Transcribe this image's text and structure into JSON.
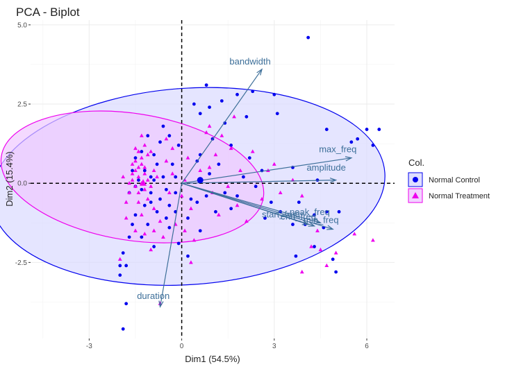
{
  "chart_data": {
    "type": "scatter",
    "title": "PCA - Biplot",
    "xlabel": "Dim1 (54.5%)",
    "ylabel": "Dim2 (15.4%)",
    "xlim": [
      -4.9,
      6.9
    ],
    "ylim": [
      -4.9,
      5.15
    ],
    "xticks": [
      -3,
      0,
      3,
      6
    ],
    "xtick_labels": [
      "-3",
      "0",
      "3",
      "6"
    ],
    "yticks": [
      -2.5,
      0,
      2.5,
      5
    ],
    "ytick_labels": [
      "-2.5",
      "0.0",
      "2.5",
      "5.0"
    ],
    "grid": true,
    "legend_position": "right",
    "legend_title": "Col.",
    "colors": {
      "control": "#0000ee",
      "treatment": "#ee00ee",
      "arrow": "#3d6f99",
      "grid": "#ebebeb"
    },
    "series": [
      {
        "name": "Normal Control",
        "marker": "circle",
        "centroid": [
          0.6,
          0.1
        ],
        "ellipse": {
          "cx": 0.2,
          "cy": -0.1,
          "rx": 6.4,
          "ry": 3.1,
          "angle_deg": 4
        },
        "points": [
          [
            4.1,
            4.6
          ],
          [
            3.0,
            2.8
          ],
          [
            0.8,
            3.1
          ],
          [
            0.9,
            2.4
          ],
          [
            1.3,
            2.6
          ],
          [
            1.8,
            2.8
          ],
          [
            0.4,
            2.5
          ],
          [
            6.0,
            1.7
          ],
          [
            6.4,
            1.7
          ],
          [
            5.7,
            1.4
          ],
          [
            4.7,
            1.7
          ],
          [
            6.2,
            1.2
          ],
          [
            5.5,
            1.3
          ],
          [
            1.4,
            1.9
          ],
          [
            2.1,
            2.1
          ],
          [
            3.1,
            2.2
          ],
          [
            2.3,
            2.9
          ],
          [
            0.6,
            2.2
          ],
          [
            1.0,
            1.4
          ],
          [
            1.6,
            1.2
          ],
          [
            2.2,
            0.8
          ],
          [
            3.6,
            0.5
          ],
          [
            4.4,
            0.1
          ],
          [
            3.8,
            -0.6
          ],
          [
            2.9,
            -0.6
          ],
          [
            4.7,
            -0.9
          ],
          [
            5.1,
            -0.9
          ],
          [
            4.3,
            -1.0
          ],
          [
            4.6,
            -1.4
          ],
          [
            2.7,
            -1.1
          ],
          [
            1.6,
            -0.8
          ],
          [
            0.8,
            -0.4
          ],
          [
            1.4,
            -0.3
          ],
          [
            0.3,
            -0.5
          ],
          [
            0.9,
            0.3
          ],
          [
            0.5,
            0.7
          ],
          [
            0.6,
            0.9
          ],
          [
            1.2,
            0.6
          ],
          [
            -0.1,
            1.2
          ],
          [
            -0.4,
            1.5
          ],
          [
            -0.7,
            1.3
          ],
          [
            -1.1,
            1.5
          ],
          [
            -0.6,
            1.8
          ],
          [
            -1.3,
            1.0
          ],
          [
            -0.9,
            0.9
          ],
          [
            -0.3,
            0.6
          ],
          [
            -0.2,
            0.2
          ],
          [
            -0.6,
            0.2
          ],
          [
            -0.9,
            0.1
          ],
          [
            -1.2,
            0.4
          ],
          [
            -1.4,
            0.1
          ],
          [
            -1.5,
            -0.1
          ],
          [
            -1.7,
            -0.3
          ],
          [
            -1.0,
            -0.3
          ],
          [
            -0.7,
            -0.5
          ],
          [
            -0.4,
            -0.7
          ],
          [
            -0.8,
            -0.9
          ],
          [
            -1.2,
            -0.7
          ],
          [
            -1.5,
            -1.0
          ],
          [
            -1.6,
            -1.3
          ],
          [
            -1.1,
            -1.3
          ],
          [
            -0.5,
            -1.1
          ],
          [
            -0.2,
            -0.9
          ],
          [
            -1.3,
            -1.7
          ],
          [
            -1.7,
            -1.7
          ],
          [
            -1.9,
            -2.2
          ],
          [
            -1.8,
            -2.6
          ],
          [
            -2.0,
            -2.6
          ],
          [
            -0.9,
            -2.0
          ],
          [
            -0.4,
            -1.4
          ],
          [
            -0.1,
            -1.9
          ],
          [
            0.2,
            -2.3
          ],
          [
            0.5,
            -0.6
          ],
          [
            1.1,
            -0.9
          ],
          [
            3.6,
            -1.3
          ],
          [
            4.0,
            -1.3
          ],
          [
            4.9,
            -2.4
          ],
          [
            5.0,
            -2.8
          ],
          [
            4.3,
            -2.0
          ],
          [
            3.7,
            -2.3
          ],
          [
            -1.8,
            -3.8
          ],
          [
            -1.9,
            -4.6
          ],
          [
            -2.0,
            -2.9
          ],
          [
            -1.6,
            0.4
          ],
          [
            -1.5,
            0.8
          ],
          [
            -1.0,
            0.2
          ],
          [
            -1.3,
            -0.2
          ],
          [
            -0.2,
            -0.3
          ],
          [
            0.2,
            -1.1
          ],
          [
            0.6,
            -1.5
          ],
          [
            2.4,
            -0.1
          ],
          [
            2.0,
            0.2
          ],
          [
            1.8,
            -0.4
          ],
          [
            2.6,
            0.4
          ],
          [
            3.2,
            -0.9
          ],
          [
            -0.8,
            0.6
          ],
          [
            -0.5,
            -0.2
          ],
          [
            -1.0,
            -0.6
          ]
        ]
      },
      {
        "name": "Normal Treatment",
        "marker": "triangle",
        "centroid": [
          -1.25,
          0.0
        ],
        "ellipse": {
          "cx": -1.6,
          "cy": 0.2,
          "rx": 4.3,
          "ry": 2.0,
          "angle_deg": -9
        },
        "points": [
          [
            -1.3,
            0.6
          ],
          [
            -1.4,
            0.5
          ],
          [
            -1.5,
            0.4
          ],
          [
            -1.2,
            0.3
          ],
          [
            -1.4,
            0.2
          ],
          [
            -1.6,
            0.1
          ],
          [
            -1.3,
            0.0
          ],
          [
            -1.5,
            -0.1
          ],
          [
            -1.1,
            0.1
          ],
          [
            -1.2,
            0.5
          ],
          [
            -1.5,
            0.7
          ],
          [
            -1.3,
            0.8
          ],
          [
            -1.4,
            1.0
          ],
          [
            -1.1,
            0.9
          ],
          [
            -1.6,
            0.3
          ],
          [
            -1.7,
            0.0
          ],
          [
            -1.2,
            -0.2
          ],
          [
            -1.4,
            -0.3
          ],
          [
            -1.0,
            -0.1
          ],
          [
            -0.9,
            0.4
          ],
          [
            -1.6,
            0.6
          ],
          [
            -1.2,
            1.2
          ],
          [
            -1.5,
            1.1
          ],
          [
            -1.3,
            1.5
          ],
          [
            -1.0,
            1.0
          ],
          [
            -0.8,
            0.2
          ],
          [
            -1.7,
            -0.3
          ],
          [
            -1.8,
            -0.6
          ],
          [
            -1.4,
            -0.6
          ],
          [
            -1.1,
            -0.5
          ],
          [
            -0.9,
            -0.8
          ],
          [
            -1.3,
            -1.0
          ],
          [
            -0.7,
            -1.2
          ],
          [
            -1.5,
            -1.5
          ],
          [
            -1.2,
            -1.6
          ],
          [
            -0.4,
            -0.3
          ],
          [
            -0.3,
            0.3
          ],
          [
            0.0,
            -0.4
          ],
          [
            0.1,
            0.1
          ],
          [
            0.3,
            -0.8
          ],
          [
            -0.2,
            -1.3
          ],
          [
            0.4,
            -1.8
          ],
          [
            0.1,
            -1.5
          ],
          [
            -0.6,
            -1.7
          ],
          [
            -0.9,
            -1.5
          ],
          [
            -0.5,
            0.7
          ],
          [
            -0.3,
            1.1
          ],
          [
            0.2,
            0.8
          ],
          [
            0.6,
            0.4
          ],
          [
            0.9,
            0.5
          ],
          [
            1.1,
            0.9
          ],
          [
            0.8,
            1.6
          ],
          [
            1.3,
            1.5
          ],
          [
            1.6,
            1.1
          ],
          [
            1.9,
            0.4
          ],
          [
            1.5,
            -0.1
          ],
          [
            1.8,
            -0.7
          ],
          [
            1.2,
            -1.0
          ],
          [
            2.3,
            1.0
          ],
          [
            2.8,
            0.4
          ],
          [
            2.6,
            -0.5
          ],
          [
            3.2,
            -0.3
          ],
          [
            3.6,
            0.1
          ],
          [
            3.9,
            -0.4
          ],
          [
            4.4,
            -1.5
          ],
          [
            4.2,
            -2.0
          ],
          [
            4.5,
            -2.1
          ],
          [
            3.9,
            -2.8
          ],
          [
            4.7,
            -2.6
          ],
          [
            5.0,
            -2.2
          ],
          [
            5.6,
            -1.6
          ],
          [
            6.2,
            -1.8
          ],
          [
            1.7,
            2.1
          ],
          [
            0.9,
            1.8
          ],
          [
            -0.7,
            -3.8
          ],
          [
            -2.0,
            -2.4
          ],
          [
            -1.8,
            -1.1
          ],
          [
            -1.0,
            -2.1
          ],
          [
            2.1,
            -1.2
          ],
          [
            0.3,
            -2.5
          ],
          [
            3.0,
            0.6
          ],
          [
            -0.5,
            1.4
          ],
          [
            1.0,
            -0.3
          ],
          [
            -1.9,
            0.2
          ]
        ]
      }
    ],
    "arrows": [
      {
        "label": "bandwidth",
        "x": 2.6,
        "y": 3.6,
        "lx": 1.55,
        "ly": 3.75
      },
      {
        "label": "max_freq",
        "x": 5.5,
        "y": 0.8,
        "lx": 4.45,
        "ly": 0.98
      },
      {
        "label": "amplitude",
        "x": 5.0,
        "y": 0.1,
        "lx": 4.05,
        "ly": 0.4
      },
      {
        "label": "duration",
        "x": -0.7,
        "y": -3.9,
        "lx": -1.45,
        "ly": -3.65
      },
      {
        "label": "start_freq",
        "x": 4.1,
        "y": -1.3,
        "lx": 2.6,
        "ly": -1.08
      },
      {
        "label": "peak_freq",
        "x": 4.5,
        "y": -1.25,
        "lx": 3.5,
        "ly": -1.0
      },
      {
        "label": "min_freq",
        "x": 4.9,
        "y": -1.45,
        "lx": 3.95,
        "ly": -1.25
      },
      {
        "label": "end_freq",
        "x": 4.3,
        "y": -1.35,
        "lx": 3.2,
        "ly": -1.15
      }
    ],
    "reference_lines": {
      "x": 0,
      "y": 0
    }
  }
}
